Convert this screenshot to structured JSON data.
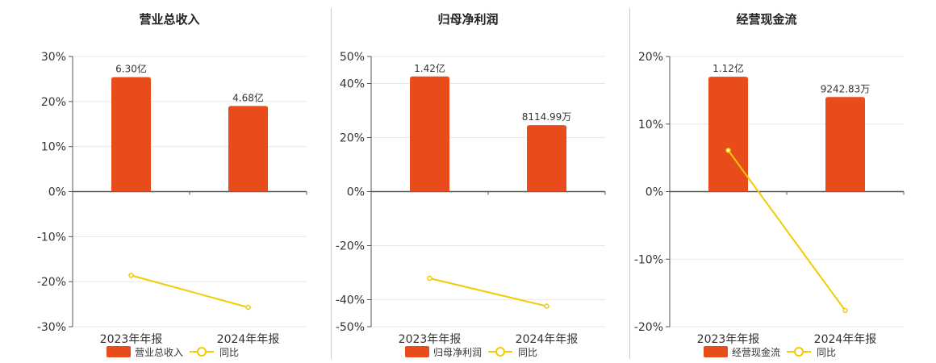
{
  "colors": {
    "bar": "#E84C1A",
    "line": "#F2CC00",
    "grid": "#E8E8E8",
    "axis": "#555555"
  },
  "chart_data": [
    {
      "type": "bar",
      "title": "营业总收入",
      "categories": [
        "2023年年报",
        "2024年年报"
      ],
      "y_ticks": [
        "30%",
        "20%",
        "10%",
        "0%",
        "-10%",
        "-20%",
        "-30%"
      ],
      "ylim": [
        -30,
        30
      ],
      "tick_values": [
        30,
        20,
        10,
        0,
        -10,
        -20,
        -30
      ],
      "series": [
        {
          "name": "营业总收入",
          "type": "bar",
          "values": [
            25.4,
            19.0
          ],
          "labels": [
            "6.30亿",
            "4.68亿"
          ]
        },
        {
          "name": "同比",
          "type": "line",
          "values": [
            -18.6,
            -25.7
          ]
        }
      ]
    },
    {
      "type": "bar",
      "title": "归母净利润",
      "categories": [
        "2023年年报",
        "2024年年报"
      ],
      "y_ticks": [
        "50%",
        "40%",
        "20%",
        "0%",
        "-20%",
        "-40%",
        "-50%"
      ],
      "ylim": [
        -50,
        50
      ],
      "tick_values": [
        50,
        40,
        20,
        0,
        -20,
        -40,
        -50
      ],
      "series": [
        {
          "name": "归母净利润",
          "type": "bar",
          "values": [
            42.6,
            24.6
          ],
          "labels": [
            "1.42亿",
            "8114.99万"
          ]
        },
        {
          "name": "同比",
          "type": "line",
          "values": [
            -32.1,
            -42.4
          ]
        }
      ]
    },
    {
      "type": "bar",
      "title": "经营现金流",
      "categories": [
        "2023年年报",
        "2024年年报"
      ],
      "y_ticks": [
        "20%",
        "10%",
        "0%",
        "-10%",
        "-20%"
      ],
      "ylim": [
        -20,
        20
      ],
      "tick_values": [
        20,
        10,
        0,
        -10,
        -20
      ],
      "series": [
        {
          "name": "经营现金流",
          "type": "bar",
          "values": [
            17.0,
            14.0
          ],
          "labels": [
            "1.12亿",
            "9242.83万"
          ]
        },
        {
          "name": "同比",
          "type": "line",
          "values": [
            6.1,
            -17.6
          ]
        }
      ]
    }
  ]
}
